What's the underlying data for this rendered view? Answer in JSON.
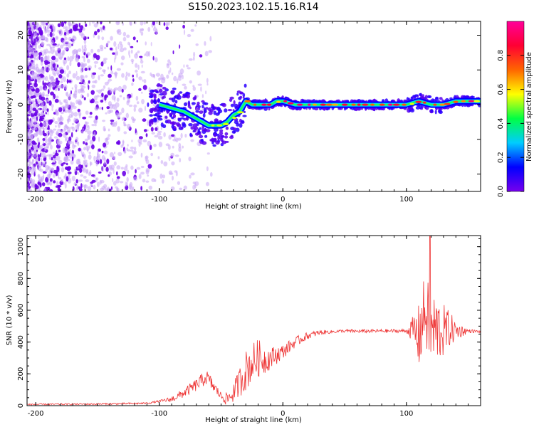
{
  "title": "S150.2023.102.15.16.R14",
  "chart_data": [
    {
      "type": "heatmap",
      "xlabel": "Height of straight line (km)",
      "ylabel": "Frequency (Hz)",
      "xlim": [
        -207,
        160
      ],
      "ylim": [
        -25,
        24
      ],
      "xticks": [
        -200,
        -100,
        0,
        100
      ],
      "yticks": [
        20,
        10,
        0,
        -10,
        -20
      ],
      "colorbar": {
        "label": "Normalized spectral amplitude",
        "range": [
          0.0,
          1.0
        ],
        "ticks": [
          "0.0",
          "0.2",
          "0.4",
          "0.6",
          "0.8"
        ],
        "tick_values": [
          0.0,
          0.2,
          0.4,
          0.6,
          0.8
        ],
        "colors": [
          "#7700ee",
          "#0000ff",
          "#00ccff",
          "#00ff44",
          "#ffff00",
          "#ff6600",
          "#ff0033",
          "#ff0099"
        ]
      },
      "ridge": {
        "x": [
          -100,
          -90,
          -80,
          -70,
          -60,
          -50,
          -45,
          -40,
          -35,
          -30,
          -25,
          -20,
          -15,
          -10,
          -5,
          0,
          10,
          20,
          40,
          60,
          80,
          90,
          100,
          110,
          120,
          130,
          140,
          160
        ],
        "y": [
          0,
          -1,
          -2,
          -4,
          -6,
          -6,
          -5,
          -3,
          -2,
          1,
          0,
          0,
          0,
          0,
          1,
          1,
          0,
          0,
          0,
          0,
          0,
          0,
          0,
          1,
          0,
          0,
          1,
          1
        ]
      }
    },
    {
      "type": "line",
      "xlabel": "Height of straight line (km)",
      "ylabel": "SNR (10 * v/v)",
      "xlim": [
        -207,
        160
      ],
      "ylim": [
        0,
        1070
      ],
      "xticks": [
        -200,
        -100,
        0,
        100
      ],
      "yticks": [
        0,
        200,
        400,
        600,
        800,
        1000
      ],
      "color": "#ee3333",
      "envelope": {
        "x": [
          -207,
          -150,
          -110,
          -90,
          -80,
          -70,
          -62,
          -55,
          -50,
          -45,
          -40,
          -35,
          -30,
          -25,
          -20,
          -15,
          -10,
          -5,
          0,
          10,
          20,
          30,
          40,
          50,
          60,
          80,
          100,
          105,
          110,
          115,
          120,
          125,
          130,
          135,
          140,
          150,
          160
        ],
        "y": [
          8,
          10,
          15,
          40,
          80,
          130,
          180,
          110,
          60,
          40,
          80,
          150,
          220,
          270,
          300,
          290,
          300,
          320,
          340,
          400,
          440,
          460,
          465,
          470,
          468,
          470,
          470,
          480,
          430,
          600,
          470,
          480,
          470,
          480,
          470,
          470,
          465
        ]
      },
      "noise": {
        "x": [
          -207,
          -100,
          -80,
          -60,
          -50,
          -40,
          -30,
          -20,
          -10,
          0,
          20,
          40,
          100,
          105,
          110,
          120,
          130,
          140,
          150,
          160
        ],
        "amp": [
          4,
          6,
          30,
          50,
          25,
          60,
          130,
          120,
          70,
          45,
          22,
          10,
          12,
          80,
          210,
          260,
          170,
          60,
          12,
          8
        ]
      },
      "peak": {
        "x": 119,
        "y": 1065
      }
    }
  ]
}
